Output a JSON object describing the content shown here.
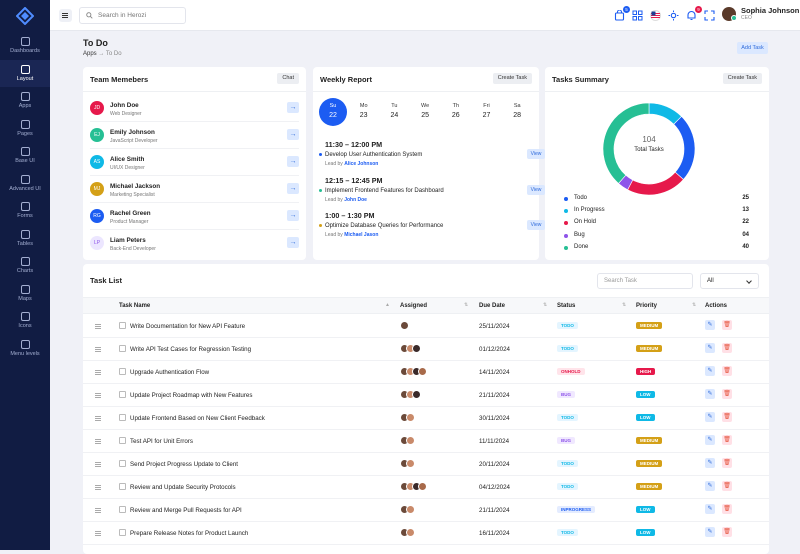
{
  "sidebar": {
    "items": [
      {
        "label": "Dashboards"
      },
      {
        "label": "Layout"
      },
      {
        "label": "Apps"
      },
      {
        "label": "Pages"
      },
      {
        "label": "Base UI"
      },
      {
        "label": "Advanced UI"
      },
      {
        "label": "Forms"
      },
      {
        "label": "Tables"
      },
      {
        "label": "Charts"
      },
      {
        "label": "Maps"
      },
      {
        "label": "Icons"
      },
      {
        "label": "Menu levels"
      }
    ]
  },
  "header": {
    "search_placeholder": "Search in Herozi",
    "cart_badge": "5",
    "notif_badge": "9",
    "user_name": "Sophia Johnson",
    "user_role": "CEO"
  },
  "page": {
    "title": "To Do",
    "breadcrumb": [
      "Apps",
      "To Do"
    ],
    "add_task_label": "Add Task"
  },
  "team": {
    "title": "Team Memebers",
    "chat_label": "Chat",
    "members": [
      {
        "initials": "JD",
        "name": "John Doe",
        "role": "Web Designer",
        "color": "#e6194b"
      },
      {
        "initials": "EJ",
        "name": "Emily Johnson",
        "role": "JavaScript Developer",
        "color": "#26bf94"
      },
      {
        "initials": "AS",
        "name": "Alice Smith",
        "role": "UI/UX Designer",
        "color": "#0fb9e6"
      },
      {
        "initials": "MJ",
        "name": "Michael Jackson",
        "role": "Marketing Specialist",
        "color": "#d4a017"
      },
      {
        "initials": "RG",
        "name": "Rachel Green",
        "role": "Product Manager",
        "color": "#1c5cf2"
      },
      {
        "initials": "LP",
        "name": "Liam Peters",
        "role": "Back-End Developer",
        "color": "#ece6ff"
      }
    ]
  },
  "weekly": {
    "title": "Weekly Report",
    "create_label": "Create Task",
    "days": [
      {
        "name": "Su",
        "date": "22"
      },
      {
        "name": "Mo",
        "date": "23"
      },
      {
        "name": "Tu",
        "date": "24"
      },
      {
        "name": "We",
        "date": "25"
      },
      {
        "name": "Th",
        "date": "26"
      },
      {
        "name": "Fri",
        "date": "27"
      },
      {
        "name": "Sa",
        "date": "28"
      }
    ],
    "events": [
      {
        "time": "11:30 – 12:00 PM",
        "title": "Develop User Authentication System",
        "lead_prefix": "Lead by",
        "lead": "Alice Johnson",
        "color": "#1c5cf2",
        "view": "View"
      },
      {
        "time": "12:15 – 12:45 PM",
        "title": "Implement Frontend Features for Dashboard",
        "lead_prefix": "Lead by",
        "lead": "John Doe",
        "color": "#26bf94",
        "view": "View"
      },
      {
        "time": "1:00 – 1:30 PM",
        "title": "Optimize Database Queries for Performance",
        "lead_prefix": "Lead by",
        "lead": "Michael Jason",
        "color": "#d4a017",
        "view": "View"
      }
    ]
  },
  "summary": {
    "title": "Tasks Summary",
    "create_label": "Create Task",
    "total": "104",
    "total_label": "Total Tasks"
  },
  "chart_data": {
    "type": "pie",
    "categories": [
      "Todo",
      "In Progress",
      "On Hold",
      "Bug",
      "Done"
    ],
    "values": [
      25,
      13,
      22,
      4,
      40
    ],
    "value_labels": [
      "25",
      "13",
      "22",
      "04",
      "40"
    ],
    "colors": [
      "#1c5cf2",
      "#0fb9e6",
      "#e6194b",
      "#8e54e9",
      "#26bf94"
    ]
  },
  "tasklist": {
    "title": "Task List",
    "search_placeholder": "Search Task",
    "filter_value": "All",
    "columns": [
      "Task Name",
      "Assigned",
      "Due Date",
      "Status",
      "Priority",
      "Actions"
    ],
    "rows": [
      {
        "name": "Write Documentation for New API Feature",
        "assigned": 1,
        "due": "25/11/2024",
        "status": "TODO",
        "priority": "MEDIUM"
      },
      {
        "name": "Write API Test Cases for Regression Testing",
        "assigned": 3,
        "due": "01/12/2024",
        "status": "TODO",
        "priority": "MEDIUM"
      },
      {
        "name": "Upgrade Authentication Flow",
        "assigned": 4,
        "due": "14/11/2024",
        "status": "ONHOLD",
        "priority": "HIGH"
      },
      {
        "name": "Update Project Roadmap with New Features",
        "assigned": 3,
        "due": "21/11/2024",
        "status": "BUG",
        "priority": "LOW"
      },
      {
        "name": "Update Frontend Based on New Client Feedback",
        "assigned": 2,
        "due": "30/11/2024",
        "status": "TODO",
        "priority": "LOW"
      },
      {
        "name": "Test API for Unit Errors",
        "assigned": 2,
        "due": "11/11/2024",
        "status": "BUG",
        "priority": "MEDIUM"
      },
      {
        "name": "Send Project Progress Update to Client",
        "assigned": 2,
        "due": "20/11/2024",
        "status": "TODO",
        "priority": "MEDIUM"
      },
      {
        "name": "Review and Update Security Protocols",
        "assigned": 4,
        "due": "04/12/2024",
        "status": "TODO",
        "priority": "MEDIUM"
      },
      {
        "name": "Review and Merge Pull Requests for API",
        "assigned": 2,
        "due": "21/11/2024",
        "status": "INPROGRESS",
        "priority": "LOW"
      },
      {
        "name": "Prepare Release Notes for Product Launch",
        "assigned": 2,
        "due": "16/11/2024",
        "status": "TODO",
        "priority": "LOW"
      }
    ]
  }
}
